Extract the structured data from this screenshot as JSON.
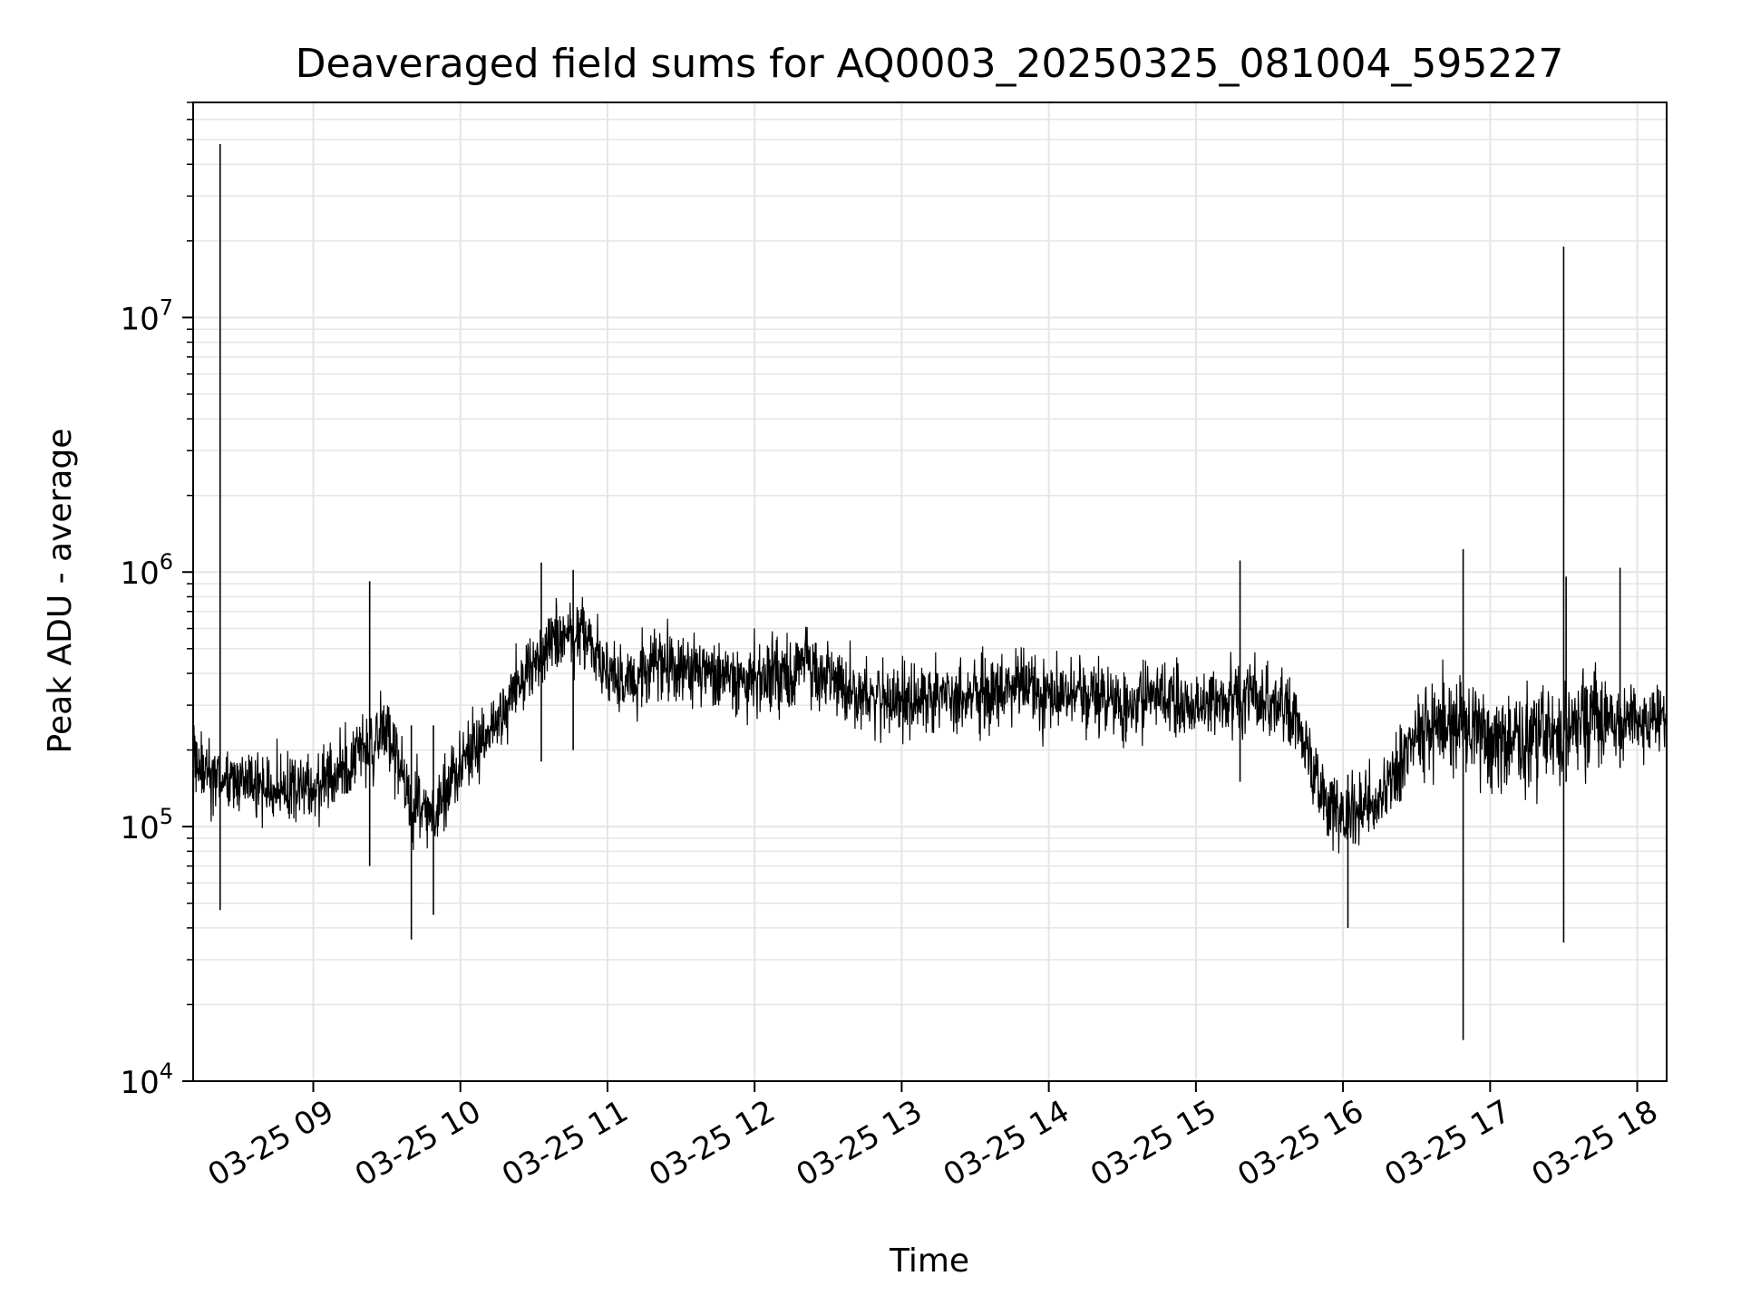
{
  "chart_data": {
    "type": "line",
    "title": "Deaveraged field sums for AQ0003_20250325_081004_595227",
    "xlabel": "Time",
    "ylabel": "Peak ADU - average",
    "yscale": "log",
    "ylim": [
      10000,
      70000000
    ],
    "xlim": [
      "03-25 08:11",
      "03-25 18:12"
    ],
    "grid": true,
    "line_color": "#000000",
    "grid_color": "#e5e5e5",
    "x_ticks": [
      "03-25 09",
      "03-25 10",
      "03-25 11",
      "03-25 12",
      "03-25 13",
      "03-25 14",
      "03-25 15",
      "03-25 16",
      "03-25 17",
      "03-25 18"
    ],
    "y_ticks": [
      {
        "value": 10000,
        "base": "10",
        "exp": "4"
      },
      {
        "value": 100000,
        "base": "10",
        "exp": "5"
      },
      {
        "value": 1000000,
        "base": "10",
        "exp": "6"
      },
      {
        "value": 10000000,
        "base": "10",
        "exp": "7"
      }
    ],
    "series": [
      {
        "x": [
          "03-25 08:11",
          "03-25 08:20",
          "03-25 08:30",
          "03-25 08:40",
          "03-25 08:50",
          "03-25 09:00",
          "03-25 09:10",
          "03-25 09:20",
          "03-25 09:30",
          "03-25 09:40",
          "03-25 09:50",
          "03-25 10:00",
          "03-25 10:10",
          "03-25 10:20",
          "03-25 10:30",
          "03-25 10:40",
          "03-25 10:50",
          "03-25 11:00",
          "03-25 11:10",
          "03-25 11:20",
          "03-25 11:30",
          "03-25 11:40",
          "03-25 11:50",
          "03-25 12:00",
          "03-25 12:10",
          "03-25 12:20",
          "03-25 12:30",
          "03-25 12:40",
          "03-25 12:50",
          "03-25 13:00",
          "03-25 13:10",
          "03-25 13:20",
          "03-25 13:30",
          "03-25 13:40",
          "03-25 13:50",
          "03-25 14:00",
          "03-25 14:10",
          "03-25 14:20",
          "03-25 14:30",
          "03-25 14:40",
          "03-25 14:50",
          "03-25 15:00",
          "03-25 15:10",
          "03-25 15:20",
          "03-25 15:30",
          "03-25 15:40",
          "03-25 15:50",
          "03-25 16:00",
          "03-25 16:10",
          "03-25 16:20",
          "03-25 16:30",
          "03-25 16:40",
          "03-25 16:50",
          "03-25 17:00",
          "03-25 17:10",
          "03-25 17:20",
          "03-25 17:30",
          "03-25 17:40",
          "03-25 17:50",
          "03-25 18:00",
          "03-25 18:12"
        ],
        "y": [
          180000,
          150000,
          150000,
          140000,
          140000,
          140000,
          160000,
          200000,
          240000,
          120000,
          110000,
          180000,
          230000,
          320000,
          420000,
          550000,
          580000,
          400000,
          360000,
          430000,
          420000,
          410000,
          380000,
          370000,
          400000,
          420000,
          390000,
          340000,
          320000,
          300000,
          320000,
          330000,
          340000,
          350000,
          340000,
          330000,
          320000,
          330000,
          310000,
          300000,
          320000,
          300000,
          310000,
          310000,
          310000,
          270000,
          150000,
          110000,
          120000,
          150000,
          230000,
          250000,
          250000,
          220000,
          220000,
          230000,
          230000,
          260000,
          260000,
          260000,
          270000
        ]
      }
    ],
    "spikes": [
      {
        "x": "03-25 08:22",
        "min": 47000,
        "max": 48000000
      },
      {
        "x": "03-25 09:23",
        "min": 70000,
        "max": 920000
      },
      {
        "x": "03-25 09:40",
        "min": 36000,
        "max": 250000
      },
      {
        "x": "03-25 09:49",
        "min": 45000,
        "max": 250000
      },
      {
        "x": "03-25 10:33",
        "min": 180000,
        "max": 1090000
      },
      {
        "x": "03-25 10:46",
        "min": 200000,
        "max": 1020000
      },
      {
        "x": "03-25 15:18",
        "min": 150000,
        "max": 1110000
      },
      {
        "x": "03-25 16:02",
        "min": 40000,
        "max": 160000
      },
      {
        "x": "03-25 16:49",
        "min": 14500,
        "max": 1230000
      },
      {
        "x": "03-25 17:30",
        "min": 35000,
        "max": 19000000
      },
      {
        "x": "03-25 17:31",
        "min": 150000,
        "max": 960000
      },
      {
        "x": "03-25 17:53",
        "min": 170000,
        "max": 1040000
      }
    ]
  }
}
